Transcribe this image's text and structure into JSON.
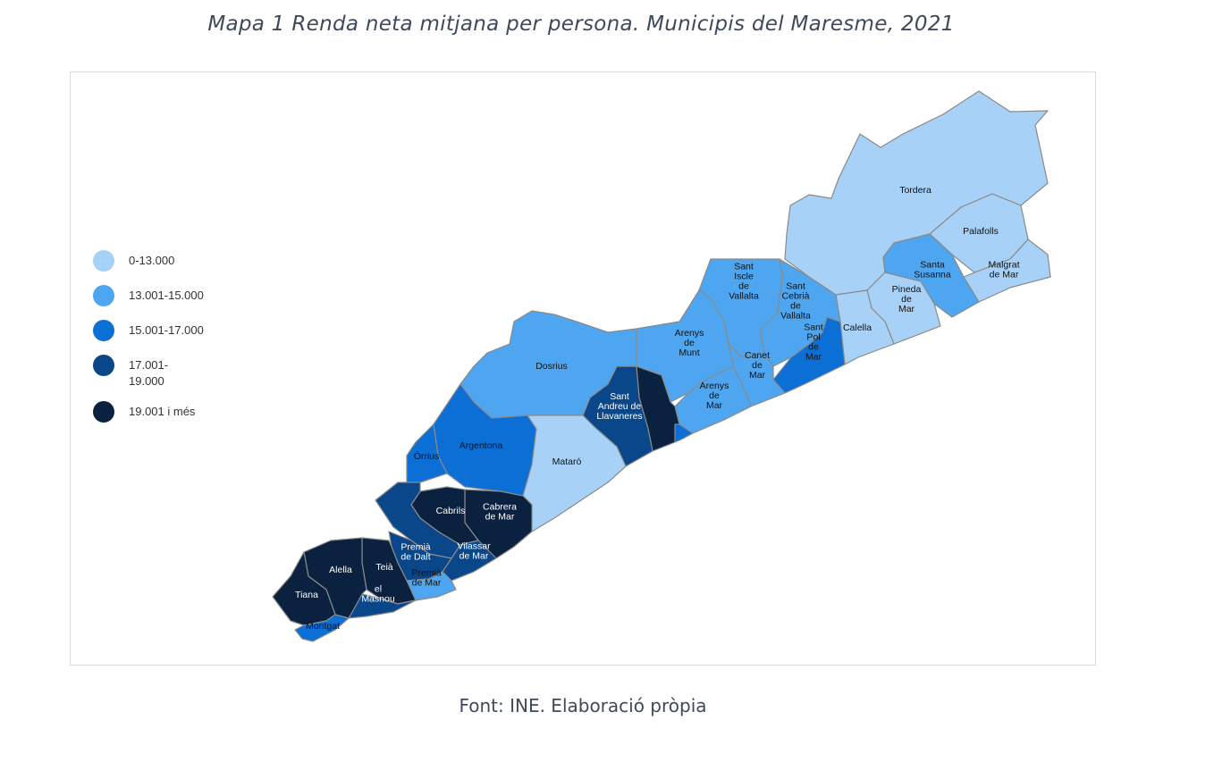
{
  "title": "Mapa 1 Renda neta mitjana per persona. Municipis del Maresme, 2021",
  "source": "Font: INE. Elaboració pròpia",
  "legend": {
    "items": [
      {
        "label": "0-13.000",
        "color": "#a8d1f7"
      },
      {
        "label": "13.001-15.000",
        "color": "#4da6ef"
      },
      {
        "label": "15.001-17.000",
        "color": "#0b6fd6"
      },
      {
        "label": "17.001-\n19.000",
        "color": "#0a468a"
      },
      {
        "label": "19.001 i més",
        "color": "#0a2140"
      }
    ]
  },
  "municipalities": [
    {
      "id": "tordera",
      "name": "Tordera",
      "class": 0
    },
    {
      "id": "palafolls",
      "name": "Palafolls",
      "class": 0
    },
    {
      "id": "malgrat",
      "name": "Malgrat\nde Mar",
      "class": 0
    },
    {
      "id": "santa-susanna",
      "name": "Santa\nSusanna",
      "class": 1
    },
    {
      "id": "pineda",
      "name": "Pineda\nde\nMar",
      "class": 0
    },
    {
      "id": "calella",
      "name": "Calella",
      "class": 0
    },
    {
      "id": "sant-pol",
      "name": "Sant\nPol\nde\nMar",
      "class": 2
    },
    {
      "id": "sant-cebria",
      "name": "Sant\nCebrià\nde\nVallalta",
      "class": 1
    },
    {
      "id": "sant-iscle",
      "name": "Sant\nIscle\nde\nVallalta",
      "class": 1
    },
    {
      "id": "canet",
      "name": "Canet\nde\nMar",
      "class": 1
    },
    {
      "id": "arenys-munt",
      "name": "Arenys\nde\nMunt",
      "class": 1
    },
    {
      "id": "arenys-mar",
      "name": "Arenys\nde\nMar",
      "class": 1
    },
    {
      "id": "caldes-est",
      "name": "",
      "class": 4
    },
    {
      "id": "sant-andreu",
      "name": "Sant\nAndreu de\nLlavaneres",
      "class": 3
    },
    {
      "id": "dosrius",
      "name": "Dosrius",
      "class": 1
    },
    {
      "id": "argentona",
      "name": "Argentona",
      "class": 2
    },
    {
      "id": "orrius",
      "name": "Òrrius",
      "class": 2
    },
    {
      "id": "mataro",
      "name": "Mataró",
      "class": 0
    },
    {
      "id": "cabrera",
      "name": "Cabrera\nde Mar",
      "class": 4
    },
    {
      "id": "cabrils",
      "name": "Cabrils",
      "class": 4
    },
    {
      "id": "vilassar-dalt",
      "name": "",
      "class": 3
    },
    {
      "id": "vilassar-mar",
      "name": "Vilassar\nde Mar",
      "class": 3
    },
    {
      "id": "premia-dalt",
      "name": "Premià\nde Dalt",
      "class": 3
    },
    {
      "id": "premia-mar",
      "name": "Premià\nde Mar",
      "class": 1
    },
    {
      "id": "teia",
      "name": "Teià",
      "class": 4
    },
    {
      "id": "el-masnou",
      "name": "el\nMasnou",
      "class": 3
    },
    {
      "id": "alella",
      "name": "Alella",
      "class": 4
    },
    {
      "id": "tiana",
      "name": "Tiana",
      "class": 4
    },
    {
      "id": "montgat",
      "name": "Montgat",
      "class": 2
    }
  ]
}
